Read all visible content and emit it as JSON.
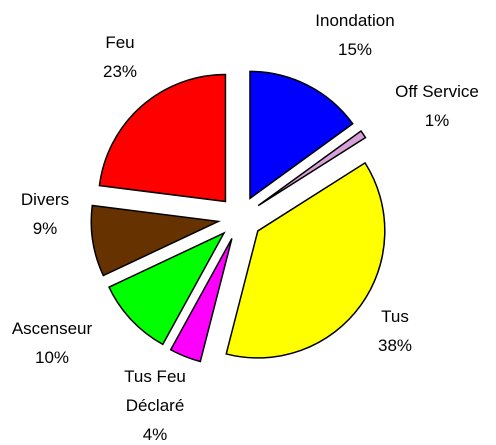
{
  "chart_data": {
    "type": "pie",
    "categories": [
      "Inondation",
      "Off Service",
      "Tus",
      "Tus Feu Déclaré",
      "Ascenseur",
      "Divers",
      "Feu"
    ],
    "values": [
      15,
      1,
      38,
      4,
      10,
      9,
      23
    ],
    "value_labels": [
      "15%",
      "1%",
      "38%",
      "4%",
      "10%",
      "9%",
      "23%"
    ],
    "colors": [
      "#0000ff",
      "#d8a0d8",
      "#ffff00",
      "#ff00ff",
      "#00ff00",
      "#663300",
      "#ff0000"
    ]
  }
}
